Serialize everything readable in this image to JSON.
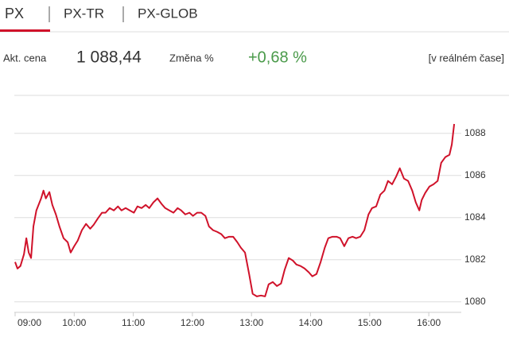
{
  "tabs": [
    "PX",
    "PX-TR",
    "PX-GLOB"
  ],
  "quote": {
    "price_label": "Akt. cena",
    "price": "1 088,44",
    "change_label": "Změna %",
    "change": "+0,68 %",
    "mode": "[v reálném čase]"
  },
  "chart_data": {
    "type": "line",
    "color": "#d0122a",
    "grid": true,
    "xlim": [
      9,
      16.55
    ],
    "ylim": [
      1079.5,
      1089.8
    ],
    "xticks": [
      {
        "value": 9,
        "label": "09:00"
      },
      {
        "value": 10,
        "label": "10:00"
      },
      {
        "value": 11,
        "label": "11:00"
      },
      {
        "value": 12,
        "label": "12:00"
      },
      {
        "value": 13,
        "label": "13:00"
      },
      {
        "value": 14,
        "label": "14:00"
      },
      {
        "value": 15,
        "label": "15:00"
      },
      {
        "value": 16,
        "label": "16:00"
      }
    ],
    "yticks": [
      1080,
      1082,
      1084,
      1086,
      1088
    ],
    "x": [
      9.0,
      9.04,
      9.09,
      9.15,
      9.19,
      9.23,
      9.27,
      9.31,
      9.36,
      9.44,
      9.48,
      9.52,
      9.58,
      9.63,
      9.69,
      9.75,
      9.82,
      9.89,
      9.94,
      10.0,
      10.06,
      10.13,
      10.2,
      10.27,
      10.33,
      10.4,
      10.47,
      10.53,
      10.6,
      10.67,
      10.74,
      10.8,
      10.87,
      10.94,
      11.01,
      11.07,
      11.14,
      11.21,
      11.27,
      11.34,
      11.41,
      11.48,
      11.54,
      11.61,
      11.68,
      11.75,
      11.81,
      11.88,
      11.95,
      12.01,
      12.08,
      12.15,
      12.22,
      12.28,
      12.35,
      12.42,
      12.49,
      12.55,
      12.62,
      12.69,
      12.76,
      12.82,
      12.89,
      12.96,
      13.02,
      13.09,
      13.16,
      13.23,
      13.29,
      13.36,
      13.43,
      13.5,
      13.56,
      13.63,
      13.7,
      13.76,
      13.83,
      13.9,
      13.97,
      14.03,
      14.1,
      14.17,
      14.24,
      14.3,
      14.37,
      14.44,
      14.5,
      14.57,
      14.64,
      14.71,
      14.77,
      14.84,
      14.91,
      14.98,
      15.04,
      15.11,
      15.18,
      15.25,
      15.31,
      15.38,
      15.45,
      15.51,
      15.58,
      15.65,
      15.72,
      15.78,
      15.84,
      15.88,
      15.94,
      16.01,
      16.08,
      16.15,
      16.21,
      16.28,
      16.35,
      16.39,
      16.43
    ],
    "values": [
      1081.89,
      1081.58,
      1081.7,
      1082.26,
      1083.02,
      1082.34,
      1082.08,
      1083.58,
      1084.34,
      1084.91,
      1085.28,
      1084.91,
      1085.21,
      1084.6,
      1084.15,
      1083.58,
      1083.02,
      1082.83,
      1082.34,
      1082.64,
      1082.91,
      1083.4,
      1083.7,
      1083.47,
      1083.66,
      1083.96,
      1084.23,
      1084.23,
      1084.45,
      1084.34,
      1084.53,
      1084.34,
      1084.45,
      1084.34,
      1084.23,
      1084.53,
      1084.45,
      1084.6,
      1084.45,
      1084.72,
      1084.91,
      1084.64,
      1084.45,
      1084.34,
      1084.23,
      1084.45,
      1084.34,
      1084.15,
      1084.23,
      1084.08,
      1084.23,
      1084.23,
      1084.08,
      1083.58,
      1083.4,
      1083.32,
      1083.21,
      1083.02,
      1083.09,
      1083.09,
      1082.83,
      1082.57,
      1082.34,
      1081.32,
      1080.38,
      1080.26,
      1080.3,
      1080.26,
      1080.83,
      1080.94,
      1080.75,
      1080.87,
      1081.51,
      1082.08,
      1081.96,
      1081.77,
      1081.7,
      1081.58,
      1081.4,
      1081.21,
      1081.32,
      1081.89,
      1082.57,
      1083.02,
      1083.09,
      1083.09,
      1083.02,
      1082.64,
      1083.02,
      1083.09,
      1083.02,
      1083.09,
      1083.4,
      1084.15,
      1084.45,
      1084.53,
      1085.09,
      1085.28,
      1085.74,
      1085.58,
      1085.96,
      1086.34,
      1085.85,
      1085.74,
      1085.28,
      1084.72,
      1084.34,
      1084.83,
      1085.17,
      1085.47,
      1085.58,
      1085.74,
      1086.6,
      1086.87,
      1086.98,
      1087.47,
      1088.44
    ]
  }
}
